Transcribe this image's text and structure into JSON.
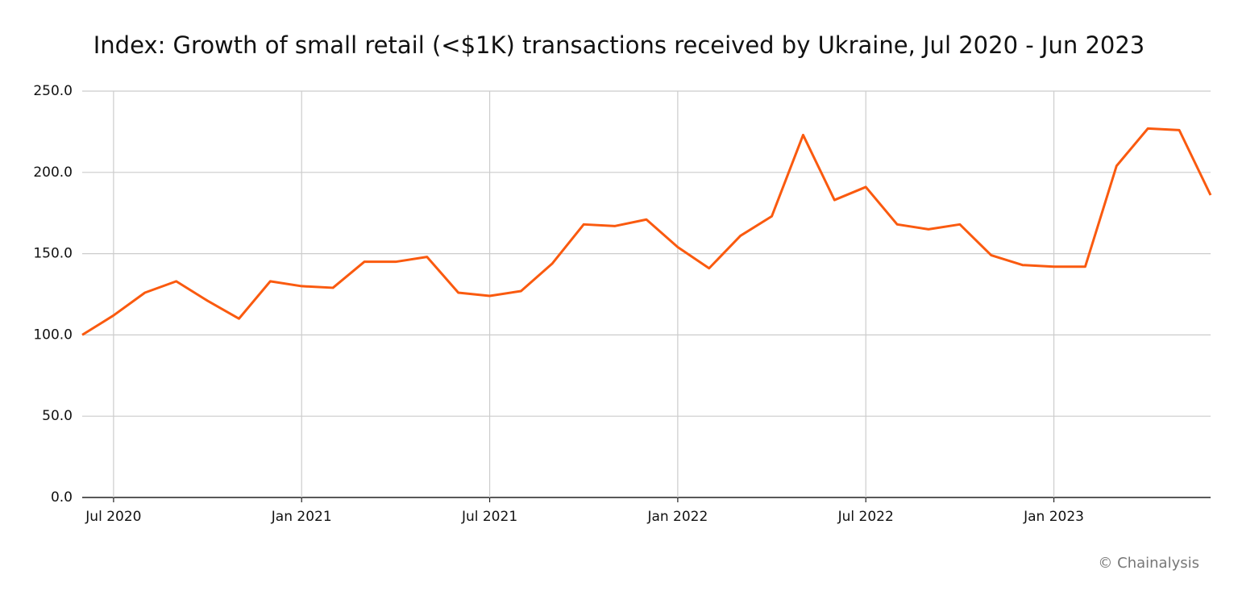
{
  "chart_data": {
    "type": "line",
    "title": "Index: Growth of small retail (<$1K) transactions received by Ukraine, Jul 2020 - Jun 2023",
    "categories": [
      null,
      "Jul 2020",
      null,
      null,
      null,
      null,
      null,
      "Jan 2021",
      null,
      null,
      null,
      null,
      null,
      "Jul 2021",
      null,
      null,
      null,
      null,
      null,
      "Jan 2022",
      null,
      null,
      null,
      null,
      null,
      "Jul 2022",
      null,
      null,
      null,
      null,
      null,
      "Jan 2023",
      null,
      null,
      null,
      null,
      null
    ],
    "series": [
      {
        "name": "Index",
        "color": "#fa5a0f",
        "values": [
          100,
          112,
          126,
          133,
          121,
          110,
          133,
          130,
          129,
          145,
          145,
          148,
          126,
          124,
          127,
          144,
          168,
          167,
          171,
          154,
          141,
          161,
          173,
          223,
          183,
          191,
          168,
          165,
          168,
          149,
          143,
          142,
          142,
          204,
          227,
          226,
          186
        ]
      }
    ],
    "ylim": [
      0,
      250
    ],
    "yticks": [
      {
        "value": 0,
        "label": "0.0"
      },
      {
        "value": 50,
        "label": "50.0"
      },
      {
        "value": 100,
        "label": "100.0"
      },
      {
        "value": 150,
        "label": "150.0"
      },
      {
        "value": 200,
        "label": "200.0"
      },
      {
        "value": 250,
        "label": "250.0"
      }
    ],
    "grid": true,
    "credit": "© Chainalysis"
  }
}
